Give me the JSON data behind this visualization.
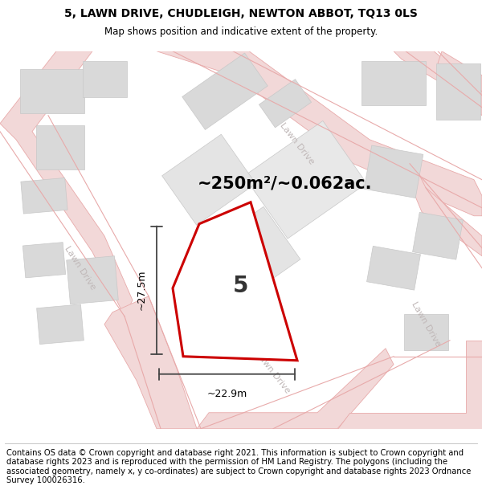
{
  "title_line1": "5, LAWN DRIVE, CHUDLEIGH, NEWTON ABBOT, TQ13 0LS",
  "title_line2": "Map shows position and indicative extent of the property.",
  "footer_text": "Contains OS data © Crown copyright and database right 2021. This information is subject to Crown copyright and database rights 2023 and is reproduced with the permission of HM Land Registry. The polygons (including the associated geometry, namely x, y co-ordinates) are subject to Crown copyright and database rights 2023 Ordnance Survey 100026316.",
  "area_label": "~250m²/~0.062ac.",
  "number_label": "5",
  "dim_h": "~27.5m",
  "dim_w": "~22.9m",
  "bg_color": "#f7f6f6",
  "road_fill": "#f2d8d8",
  "road_line": "#e8aaaa",
  "building_fill": "#d9d9d9",
  "building_edge": "#c8c8c8",
  "plot_outline_color": "#cc0000",
  "plot_fill": "#eeeeee",
  "dim_color": "#444444",
  "road_label_color": "#c0b8b8",
  "title_fontsize": 10,
  "subtitle_fontsize": 8.5,
  "footer_fontsize": 7.2,
  "area_fontsize": 15,
  "number_fontsize": 20,
  "dim_fontsize": 9
}
